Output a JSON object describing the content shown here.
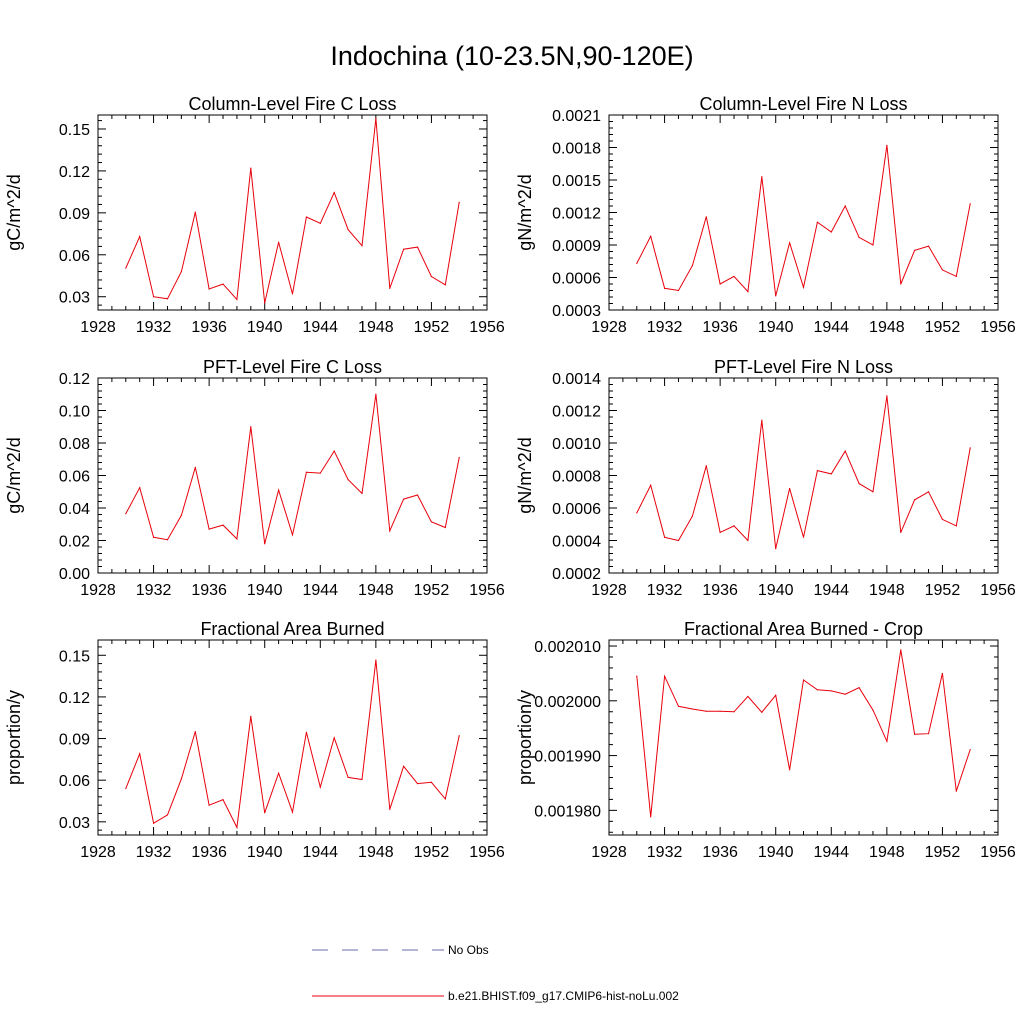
{
  "main_title": "Indochina (10-23.5N,90-120E)",
  "legend": [
    {
      "label": "No Obs",
      "color": "#6b6bb5",
      "dash": true
    },
    {
      "label": "b.e21.BHIST.f09_g17.CMIP6-hist-noLu.002",
      "color": "#e8000b",
      "dash": false
    }
  ],
  "chart_data": [
    {
      "type": "line",
      "title": "Column-Level Fire C Loss",
      "ylabel": "gC/m^2/d",
      "xlim": [
        1928,
        1956
      ],
      "xticks": [
        "1928",
        "1932",
        "1936",
        "1940",
        "1944",
        "1948",
        "1952",
        "1956"
      ],
      "ylim": [
        0.0205,
        0.16
      ],
      "yticks": [
        "0.03",
        "0.06",
        "0.09",
        "0.12",
        "0.15"
      ],
      "yticks_values": [
        0.03,
        0.06,
        0.09,
        0.12,
        0.15
      ],
      "x": [
        1930,
        1931,
        1932,
        1933,
        1934,
        1935,
        1936,
        1937,
        1938,
        1939,
        1940,
        1941,
        1942,
        1943,
        1944,
        1945,
        1946,
        1947,
        1948,
        1949,
        1950,
        1951,
        1952,
        1953,
        1954
      ],
      "series": [
        {
          "color": "#e8000b",
          "values": [
            0.0505,
            0.073,
            0.03,
            0.0285,
            0.048,
            0.0905,
            0.0355,
            0.039,
            0.028,
            0.122,
            0.0255,
            0.069,
            0.032,
            0.087,
            0.0825,
            0.1045,
            0.078,
            0.0665,
            0.1575,
            0.036,
            0.064,
            0.0655,
            0.0445,
            0.0385,
            0.0975
          ]
        }
      ]
    },
    {
      "type": "line",
      "title": "Column-Level Fire N Loss",
      "ylabel": "gN/m^2/d",
      "xlim": [
        1928,
        1956
      ],
      "xticks": [
        "1928",
        "1932",
        "1936",
        "1940",
        "1944",
        "1948",
        "1952",
        "1956"
      ],
      "ylim": [
        0.0003,
        0.0021
      ],
      "yticks": [
        "0.0003",
        "0.0006",
        "0.0009",
        "0.0012",
        "0.0015",
        "0.0018",
        "0.0021"
      ],
      "yticks_values": [
        0.0003,
        0.0006,
        0.0009,
        0.0012,
        0.0015,
        0.0018,
        0.0021
      ],
      "x": [
        1930,
        1931,
        1932,
        1933,
        1934,
        1935,
        1936,
        1937,
        1938,
        1939,
        1940,
        1941,
        1942,
        1943,
        1944,
        1945,
        1946,
        1947,
        1948,
        1949,
        1950,
        1951,
        1952,
        1953,
        1954
      ],
      "series": [
        {
          "color": "#e8000b",
          "values": [
            0.00073,
            0.00098,
            0.0005,
            0.00048,
            0.00071,
            0.00116,
            0.00054,
            0.00061,
            0.00047,
            0.00153,
            0.00043,
            0.00092,
            0.00051,
            0.00111,
            0.00102,
            0.00126,
            0.00097,
            0.0009,
            0.00182,
            0.00054,
            0.00085,
            0.00089,
            0.00067,
            0.00061,
            0.00128
          ]
        }
      ]
    },
    {
      "type": "line",
      "title": "PFT-Level Fire C Loss",
      "ylabel": "gC/m^2/d",
      "xlim": [
        1928,
        1956
      ],
      "xticks": [
        "1928",
        "1932",
        "1936",
        "1940",
        "1944",
        "1948",
        "1952",
        "1956"
      ],
      "ylim": [
        0.0,
        0.12
      ],
      "yticks": [
        "0.00",
        "0.02",
        "0.04",
        "0.06",
        "0.08",
        "0.10",
        "0.12"
      ],
      "yticks_values": [
        0.0,
        0.02,
        0.04,
        0.06,
        0.08,
        0.1,
        0.12
      ],
      "x": [
        1930,
        1931,
        1932,
        1933,
        1934,
        1935,
        1936,
        1937,
        1938,
        1939,
        1940,
        1941,
        1942,
        1943,
        1944,
        1945,
        1946,
        1947,
        1948,
        1949,
        1950,
        1951,
        1952,
        1953,
        1954
      ],
      "series": [
        {
          "color": "#e8000b",
          "values": [
            0.0365,
            0.0525,
            0.022,
            0.0205,
            0.0355,
            0.065,
            0.027,
            0.0295,
            0.021,
            0.09,
            0.018,
            0.051,
            0.0235,
            0.062,
            0.0615,
            0.075,
            0.0575,
            0.049,
            0.11,
            0.026,
            0.0455,
            0.048,
            0.0315,
            0.028,
            0.071
          ]
        }
      ]
    },
    {
      "type": "line",
      "title": "PFT-Level Fire N Loss",
      "ylabel": "gN/m^2/d",
      "xlim": [
        1928,
        1956
      ],
      "xticks": [
        "1928",
        "1932",
        "1936",
        "1940",
        "1944",
        "1948",
        "1952",
        "1956"
      ],
      "ylim": [
        0.0002,
        0.0014
      ],
      "yticks": [
        "0.0002",
        "0.0004",
        "0.0006",
        "0.0008",
        "0.0010",
        "0.0012",
        "0.0014"
      ],
      "yticks_values": [
        0.0002,
        0.0004,
        0.0006,
        0.0008,
        0.001,
        0.0012,
        0.0014
      ],
      "x": [
        1930,
        1931,
        1932,
        1933,
        1934,
        1935,
        1936,
        1937,
        1938,
        1939,
        1940,
        1941,
        1942,
        1943,
        1944,
        1945,
        1946,
        1947,
        1948,
        1949,
        1950,
        1951,
        1952,
        1953,
        1954
      ],
      "series": [
        {
          "color": "#e8000b",
          "values": [
            0.00057,
            0.00074,
            0.00042,
            0.0004,
            0.00055,
            0.00086,
            0.00045,
            0.00049,
            0.0004,
            0.00114,
            0.00035,
            0.00072,
            0.00042,
            0.00083,
            0.00081,
            0.00095,
            0.00075,
            0.0007,
            0.00129,
            0.00045,
            0.00065,
            0.0007,
            0.00053,
            0.00049,
            0.00097
          ]
        }
      ]
    },
    {
      "type": "line",
      "title": "Fractional Area Burned",
      "ylabel": "proportion/y",
      "xlim": [
        1928,
        1956
      ],
      "xticks": [
        "1928",
        "1932",
        "1936",
        "1940",
        "1944",
        "1948",
        "1952",
        "1956"
      ],
      "ylim": [
        0.0205,
        0.161
      ],
      "yticks": [
        "0.03",
        "0.06",
        "0.09",
        "0.12",
        "0.15"
      ],
      "yticks_values": [
        0.03,
        0.06,
        0.09,
        0.12,
        0.15
      ],
      "x": [
        1930,
        1931,
        1932,
        1933,
        1934,
        1935,
        1936,
        1937,
        1938,
        1939,
        1940,
        1941,
        1942,
        1943,
        1944,
        1945,
        1946,
        1947,
        1948,
        1949,
        1950,
        1951,
        1952,
        1953,
        1954
      ],
      "series": [
        {
          "color": "#e8000b",
          "values": [
            0.054,
            0.079,
            0.029,
            0.035,
            0.061,
            0.095,
            0.042,
            0.046,
            0.026,
            0.106,
            0.0365,
            0.065,
            0.037,
            0.0945,
            0.055,
            0.0905,
            0.062,
            0.0605,
            0.1465,
            0.039,
            0.07,
            0.0575,
            0.0585,
            0.0465,
            0.092
          ]
        }
      ]
    },
    {
      "type": "line",
      "title": "Fractional Area Burned - Crop",
      "ylabel": "proportion/y",
      "xlim": [
        1928,
        1956
      ],
      "xticks": [
        "1928",
        "1932",
        "1936",
        "1940",
        "1944",
        "1948",
        "1952",
        "1956"
      ],
      "ylim": [
        0.0019755,
        0.0020111
      ],
      "yticks": [
        "0.001980",
        "0.001990",
        "0.002000",
        "0.002010"
      ],
      "yticks_values": [
        0.00198,
        0.00199,
        0.002,
        0.00201
      ],
      "x": [
        1930,
        1931,
        1932,
        1933,
        1934,
        1935,
        1936,
        1937,
        1938,
        1939,
        1940,
        1941,
        1942,
        1943,
        1944,
        1945,
        1946,
        1947,
        1948,
        1949,
        1950,
        1951,
        1952,
        1953,
        1954
      ],
      "series": [
        {
          "color": "#e8000b",
          "values": [
            0.0020045,
            0.0019788,
            0.0020045,
            0.001999,
            0.0019985,
            0.0019981,
            0.0019981,
            0.001998,
            0.0020008,
            0.0019979,
            0.002001,
            0.0019874,
            0.0020038,
            0.002002,
            0.0020018,
            0.0020012,
            0.0020024,
            0.0019983,
            0.0019926,
            0.0020093,
            0.0019939,
            0.001994,
            0.002005,
            0.0019835,
            0.0019911
          ]
        }
      ]
    }
  ]
}
